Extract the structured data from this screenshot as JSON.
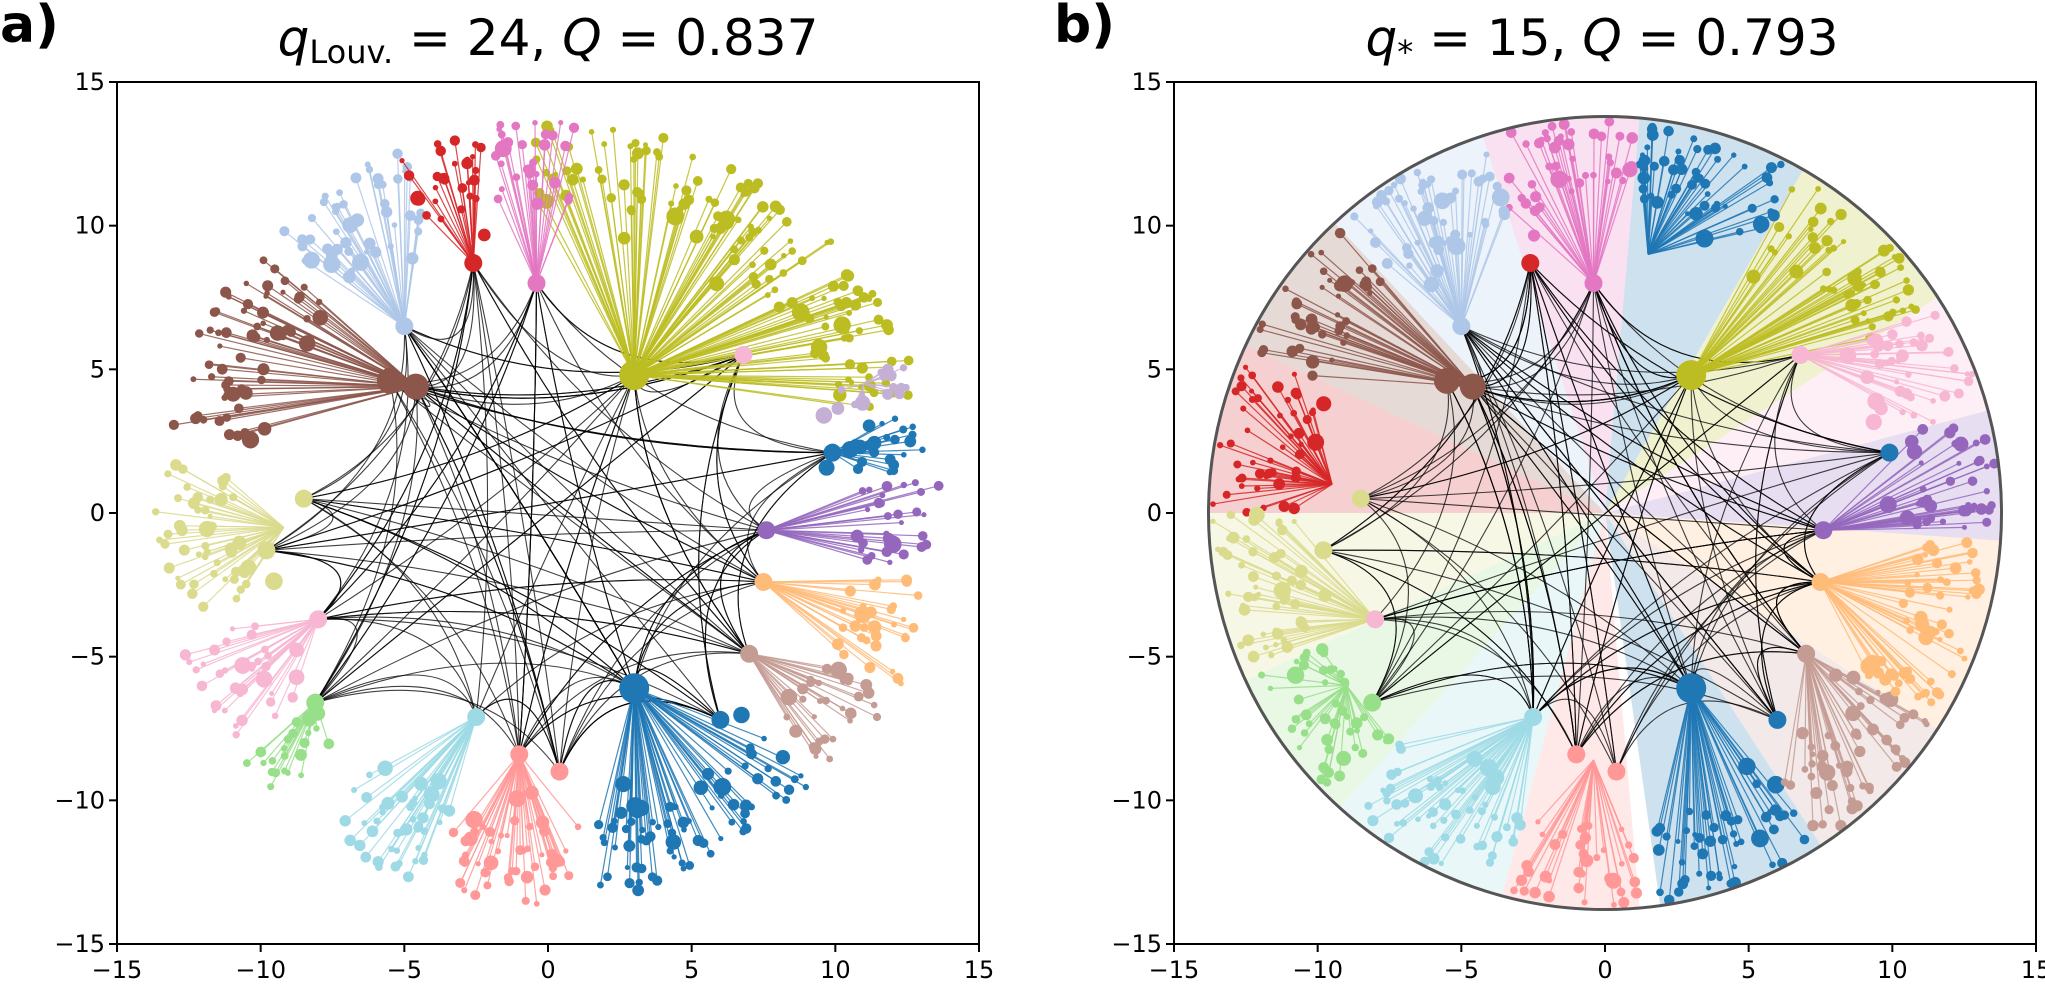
{
  "figure": {
    "panels": [
      {
        "panel_label": "a)",
        "title_var": "q",
        "title_sub": "Louv.",
        "title_q_eq": " = 24, ",
        "title_Q": "Q",
        "title_Q_eq": " = 0.837",
        "show_disk": false
      },
      {
        "panel_label": "b)",
        "title_var": "q",
        "title_sub": "*",
        "title_q_eq": " = 15, ",
        "title_Q": "Q",
        "title_Q_eq": " = 0.793",
        "show_disk": true
      }
    ],
    "axis": {
      "range": [
        -15,
        15
      ],
      "ticks": [
        -15,
        -10,
        -5,
        0,
        5,
        10,
        15
      ],
      "tick_labels": [
        "−15",
        "−10",
        "−5",
        "0",
        "5",
        "10",
        "15"
      ]
    }
  },
  "chart_data": {
    "type": "scatter",
    "description_units": "hyperbolic-disk embedding coordinates",
    "disk_radius": 13.8,
    "colors": [
      "#1f77b4",
      "#aec7e8",
      "#ff7f0e",
      "#ffbb78",
      "#2ca02c",
      "#98df8a",
      "#d62728",
      "#ff9896",
      "#9467bd",
      "#c5b0d5",
      "#8c564b",
      "#c49c94",
      "#e377c2",
      "#f7b6d2",
      "#7f7f7f",
      "#c7c7c7",
      "#bcbd22",
      "#dbdb8d",
      "#17becf",
      "#9edae5"
    ],
    "hubs": [
      {
        "x": 3.0,
        "y": 4.8,
        "size": 3,
        "color": "#bcbd22"
      },
      {
        "x": 3.0,
        "y": -6.1,
        "size": 3,
        "color": "#1f77b4"
      },
      {
        "x": -4.6,
        "y": 4.4,
        "size": 2,
        "color": "#8c564b"
      },
      {
        "x": -5.5,
        "y": 4.6,
        "size": 2,
        "color": "#8c564b"
      },
      {
        "x": -0.4,
        "y": 8.0,
        "size": 1,
        "color": "#e377c2"
      },
      {
        "x": -2.6,
        "y": 8.7,
        "size": 1,
        "color": "#d62728"
      },
      {
        "x": -5.0,
        "y": 6.5,
        "size": 1,
        "color": "#aec7e8"
      },
      {
        "x": 7.6,
        "y": -0.6,
        "size": 1,
        "color": "#9467bd"
      },
      {
        "x": 7.5,
        "y": -2.4,
        "size": 1,
        "color": "#ffbb78"
      },
      {
        "x": 7.0,
        "y": -4.9,
        "size": 1,
        "color": "#c49c94"
      },
      {
        "x": -2.5,
        "y": -7.1,
        "size": 1,
        "color": "#9edae5"
      },
      {
        "x": -1.0,
        "y": -8.4,
        "size": 1,
        "color": "#ff9896"
      },
      {
        "x": 0.4,
        "y": -9.0,
        "size": 1,
        "color": "#ff9896"
      },
      {
        "x": 6.0,
        "y": -7.2,
        "size": 1,
        "color": "#1f77b4"
      },
      {
        "x": -8.0,
        "y": -3.7,
        "size": 1,
        "color": "#f7b6d2"
      },
      {
        "x": -8.5,
        "y": 0.5,
        "size": 1,
        "color": "#dbdb8d"
      },
      {
        "x": -9.8,
        "y": -1.3,
        "size": 1,
        "color": "#dbdb8d"
      },
      {
        "x": 9.9,
        "y": 2.1,
        "size": 1,
        "color": "#1f77b4"
      },
      {
        "x": 6.8,
        "y": 5.5,
        "size": 1,
        "color": "#f7b6d2"
      },
      {
        "x": -8.1,
        "y": -6.6,
        "size": 1,
        "color": "#98df8a"
      }
    ],
    "panel_a_communities": [
      {
        "color": "#bcbd22",
        "hub": [
          3.0,
          4.8
        ],
        "angle_from": 18,
        "angle_to": 92
      },
      {
        "color": "#1f77b4",
        "hub": [
          3.0,
          -6.1
        ],
        "angle_from": -82,
        "angle_to": -46
      },
      {
        "color": "#8c564b",
        "hub": [
          -4.6,
          4.4
        ],
        "angle_from": 137,
        "angle_to": 168
      },
      {
        "color": "#aec7e8",
        "hub": [
          -5.0,
          6.5
        ],
        "angle_from": 112,
        "angle_to": 135
      },
      {
        "color": "#d62728",
        "hub": [
          -2.6,
          8.7
        ],
        "angle_from": 100,
        "angle_to": 113
      },
      {
        "color": "#e377c2",
        "hub": [
          -0.4,
          8.0
        ],
        "angle_from": 86,
        "angle_to": 100
      },
      {
        "color": "#c5b0d5",
        "hub": [
          11.0,
          4.5
        ],
        "angle_from": 18,
        "angle_to": 23
      },
      {
        "color": "#1f77b4",
        "hub": [
          9.9,
          2.1
        ],
        "angle_from": 6,
        "angle_to": 16
      },
      {
        "color": "#9467bd",
        "hub": [
          7.6,
          -0.6
        ],
        "angle_from": -9,
        "angle_to": 6
      },
      {
        "color": "#ffbb78",
        "hub": [
          7.5,
          -2.4
        ],
        "angle_from": -26,
        "angle_to": -10
      },
      {
        "color": "#c49c94",
        "hub": [
          7.0,
          -4.9
        ],
        "angle_from": -43,
        "angle_to": -26
      },
      {
        "color": "#ff9896",
        "hub": [
          -1.0,
          -8.4
        ],
        "angle_from": -108,
        "angle_to": -84
      },
      {
        "color": "#9edae5",
        "hub": [
          -2.5,
          -7.1
        ],
        "angle_from": -128,
        "angle_to": -108
      },
      {
        "color": "#98df8a",
        "hub": [
          -8.1,
          -6.6
        ],
        "angle_from": -142,
        "angle_to": -132
      },
      {
        "color": "#f7b6d2",
        "hub": [
          -8.0,
          -3.7
        ],
        "angle_from": -160,
        "angle_to": -143
      },
      {
        "color": "#dbdb8d",
        "hub": [
          -9.2,
          -0.5
        ],
        "angle_from": 172,
        "angle_to": 196
      }
    ],
    "panel_b_communities": [
      {
        "color": "#bcbd22",
        "hub": [
          3.0,
          4.8
        ],
        "angle_from": 33,
        "angle_to": 60
      },
      {
        "color": "#1f77b4",
        "hub": [
          3.0,
          -6.1
        ],
        "angle_from": -82,
        "angle_to": -57
      },
      {
        "color": "#1f77b4",
        "hub": [
          1.5,
          9.0
        ],
        "angle_from": 60,
        "angle_to": 85
      },
      {
        "color": "#e377c2",
        "hub": [
          -0.4,
          8.0
        ],
        "angle_from": 85,
        "angle_to": 108
      },
      {
        "color": "#aec7e8",
        "hub": [
          -5.0,
          6.5
        ],
        "angle_from": 108,
        "angle_to": 133
      },
      {
        "color": "#8c564b",
        "hub": [
          -4.6,
          4.4
        ],
        "angle_from": 133,
        "angle_to": 155
      },
      {
        "color": "#d62728",
        "hub": [
          -9.5,
          1.0
        ],
        "angle_from": 155,
        "angle_to": 180
      },
      {
        "color": "#dbdb8d",
        "hub": [
          -8.0,
          -3.7
        ],
        "angle_from": 180,
        "angle_to": 205
      },
      {
        "color": "#98df8a",
        "hub": [
          -9.0,
          -6.0
        ],
        "angle_from": 205,
        "angle_to": 228
      },
      {
        "color": "#9edae5",
        "hub": [
          -2.5,
          -7.1
        ],
        "angle_from": 228,
        "angle_to": 255
      },
      {
        "color": "#ff9896",
        "hub": [
          -0.4,
          -8.6
        ],
        "angle_from": 255,
        "angle_to": 275
      },
      {
        "color": "#c49c94",
        "hub": [
          7.0,
          -4.9
        ],
        "angle_from": -57,
        "angle_to": -33
      },
      {
        "color": "#ffbb78",
        "hub": [
          7.5,
          -2.4
        ],
        "angle_from": -33,
        "angle_to": -4
      },
      {
        "color": "#9467bd",
        "hub": [
          7.6,
          -0.6
        ],
        "angle_from": -4,
        "angle_to": 15
      },
      {
        "color": "#f7b6d2",
        "hub": [
          6.8,
          5.5
        ],
        "angle_from": 15,
        "angle_to": 33
      }
    ]
  }
}
